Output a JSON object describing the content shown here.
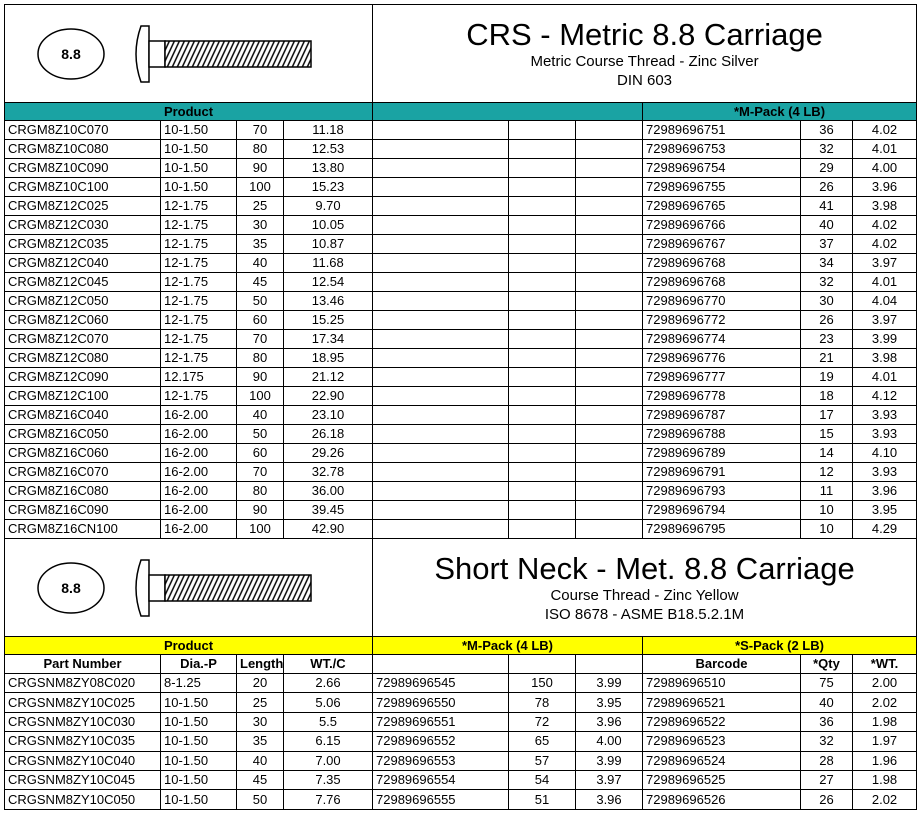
{
  "sections": [
    {
      "badge": "8.8",
      "title": "CRS - Metric 8.8 Carriage",
      "subtitle": [
        "Metric Course Thread - Zinc Silver",
        "DIN 603"
      ],
      "band": [
        "Product",
        null,
        "*M-Pack (4 LB)"
      ],
      "band_color": "#1aa3a3",
      "rows": [
        [
          "CRGM8Z10C070",
          "10-1.50",
          "70",
          "11.18",
          null,
          null,
          null,
          "72989696751",
          "36",
          "4.02"
        ],
        [
          "CRGM8Z10C080",
          "10-1.50",
          "80",
          "12.53",
          null,
          null,
          null,
          "72989696753",
          "32",
          "4.01"
        ],
        [
          "CRGM8Z10C090",
          "10-1.50",
          "90",
          "13.80",
          null,
          null,
          null,
          "72989696754",
          "29",
          "4.00"
        ],
        [
          "CRGM8Z10C100",
          "10-1.50",
          "100",
          "15.23",
          null,
          null,
          null,
          "72989696755",
          "26",
          "3.96"
        ],
        [
          "CRGM8Z12C025",
          "12-1.75",
          "25",
          "9.70",
          null,
          null,
          null,
          "72989696765",
          "41",
          "3.98"
        ],
        [
          "CRGM8Z12C030",
          "12-1.75",
          "30",
          "10.05",
          null,
          null,
          null,
          "72989696766",
          "40",
          "4.02"
        ],
        [
          "CRGM8Z12C035",
          "12-1.75",
          "35",
          "10.87",
          null,
          null,
          null,
          "72989696767",
          "37",
          "4.02"
        ],
        [
          "CRGM8Z12C040",
          "12-1.75",
          "40",
          "11.68",
          null,
          null,
          null,
          "72989696768",
          "34",
          "3.97"
        ],
        [
          "CRGM8Z12C045",
          "12-1.75",
          "45",
          "12.54",
          null,
          null,
          null,
          "72989696768",
          "32",
          "4.01"
        ],
        [
          "CRGM8Z12C050",
          "12-1.75",
          "50",
          "13.46",
          null,
          null,
          null,
          "72989696770",
          "30",
          "4.04"
        ],
        [
          "CRGM8Z12C060",
          "12-1.75",
          "60",
          "15.25",
          null,
          null,
          null,
          "72989696772",
          "26",
          "3.97"
        ],
        [
          "CRGM8Z12C070",
          "12-1.75",
          "70",
          "17.34",
          null,
          null,
          null,
          "72989696774",
          "23",
          "3.99"
        ],
        [
          "CRGM8Z12C080",
          "12-1.75",
          "80",
          "18.95",
          null,
          null,
          null,
          "72989696776",
          "21",
          "3.98"
        ],
        [
          "CRGM8Z12C090",
          "12.175",
          "90",
          "21.12",
          null,
          null,
          null,
          "72989696777",
          "19",
          "4.01"
        ],
        [
          "CRGM8Z12C100",
          "12-1.75",
          "100",
          "22.90",
          null,
          null,
          null,
          "72989696778",
          "18",
          "4.12"
        ],
        [
          "CRGM8Z16C040",
          "16-2.00",
          "40",
          "23.10",
          null,
          null,
          null,
          "72989696787",
          "17",
          "3.93"
        ],
        [
          "CRGM8Z16C050",
          "16-2.00",
          "50",
          "26.18",
          null,
          null,
          null,
          "72989696788",
          "15",
          "3.93"
        ],
        [
          "CRGM8Z16C060",
          "16-2.00",
          "60",
          "29.26",
          null,
          null,
          null,
          "72989696789",
          "14",
          "4.10"
        ],
        [
          "CRGM8Z16C070",
          "16-2.00",
          "70",
          "32.78",
          null,
          null,
          null,
          "72989696791",
          "12",
          "3.93"
        ],
        [
          "CRGM8Z16C080",
          "16-2.00",
          "80",
          "36.00",
          null,
          null,
          null,
          "72989696793",
          "11",
          "3.96"
        ],
        [
          "CRGM8Z16C090",
          "16-2.00",
          "90",
          "39.45",
          null,
          null,
          null,
          "72989696794",
          "10",
          "3.95"
        ],
        [
          "CRGM8Z16CN100",
          "16-2.00",
          "100",
          "42.90",
          null,
          null,
          null,
          "72989696795",
          "10",
          "4.29"
        ]
      ]
    },
    {
      "badge": "8.8",
      "title": "Short Neck - Met. 8.8 Carriage",
      "subtitle": [
        "Course Thread - Zinc Yellow",
        "ISO 8678 - ASME B18.5.2.1M"
      ],
      "band": [
        "Product",
        "*M-Pack (4 LB)",
        "*S-Pack (2 LB)"
      ],
      "band_color": "#ffff00",
      "header": [
        "Part Number",
        "Dia.-P",
        "Length",
        "WT./C",
        null,
        null,
        null,
        "Barcode",
        "*Qty",
        "*WT."
      ],
      "rows": [
        [
          "CRGSNM8ZY08C020",
          "8-1.25",
          "20",
          "2.66",
          "72989696545",
          "150",
          "3.99",
          "72989696510",
          "75",
          "2.00"
        ],
        [
          "CRGSNM8ZY10C025",
          "10-1.50",
          "25",
          "5.06",
          "72989696550",
          "78",
          "3.95",
          "72989696521",
          "40",
          "2.02"
        ],
        [
          "CRGSNM8ZY10C030",
          "10-1.50",
          "30",
          "5.5",
          "72989696551",
          "72",
          "3.96",
          "72989696522",
          "36",
          "1.98"
        ],
        [
          "CRGSNM8ZY10C035",
          "10-1.50",
          "35",
          "6.15",
          "72989696552",
          "65",
          "4.00",
          "72989696523",
          "32",
          "1.97"
        ],
        [
          "CRGSNM8ZY10C040",
          "10-1.50",
          "40",
          "7.00",
          "72989696553",
          "57",
          "3.99",
          "72989696524",
          "28",
          "1.96"
        ],
        [
          "CRGSNM8ZY10C045",
          "10-1.50",
          "45",
          "7.35",
          "72989696554",
          "54",
          "3.97",
          "72989696525",
          "27",
          "1.98"
        ],
        [
          "CRGSNM8ZY10C050",
          "10-1.50",
          "50",
          "7.76",
          "72989696555",
          "51",
          "3.96",
          "72989696526",
          "26",
          "2.02"
        ]
      ]
    }
  ]
}
